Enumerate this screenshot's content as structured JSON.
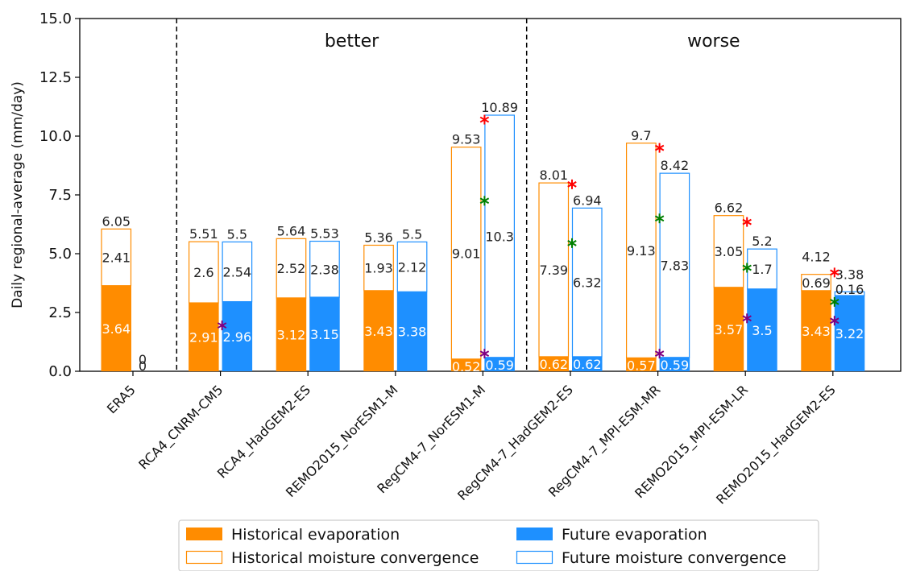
{
  "chart_data": {
    "type": "bar",
    "ylabel": "Daily regional-average (mm/day)",
    "ylim": [
      0,
      15
    ],
    "yticks": [
      "0.0",
      "2.5",
      "5.0",
      "7.5",
      "10.0",
      "12.5",
      "15.0"
    ],
    "categories": [
      "ERA5",
      "RCA4_CNRM-CM5",
      "RCA4_HadGEM2-ES",
      "REMO2015_NorESM1-M",
      "RegCM4-7_NorESM1-M",
      "RegCM4-7_HadGEM2-ES",
      "RegCM4-7_MPI-ESM-MR",
      "REMO2015_MPI-ESM-LR",
      "REMO2015_HadGEM2-ES"
    ],
    "regions": [
      {
        "label": "better",
        "from_category": 1,
        "to_category": 4
      },
      {
        "label": "worse",
        "from_category": 5,
        "to_category": 8
      }
    ],
    "series": [
      {
        "name": "Historical evaporation",
        "color": "#ff8c00",
        "style": "filled",
        "values": [
          3.64,
          2.91,
          3.12,
          3.43,
          0.52,
          0.62,
          0.57,
          3.57,
          3.43
        ],
        "labels": [
          "3.64",
          "2.91",
          "3.12",
          "3.43",
          "0.52",
          "0.62",
          "0.57",
          "3.57",
          "3.43"
        ]
      },
      {
        "name": "Historical moisture convergence",
        "color": "#ff8c00",
        "style": "outline",
        "values": [
          2.41,
          2.6,
          2.52,
          1.93,
          9.01,
          7.39,
          9.13,
          3.05,
          0.69
        ],
        "labels": [
          "2.41",
          "2.6",
          "2.52",
          "1.93",
          "9.01",
          "7.39",
          "9.13",
          "3.05",
          "0.69"
        ]
      },
      {
        "name": "Future evaporation",
        "color": "#1e90ff",
        "style": "filled",
        "values": [
          0,
          2.96,
          3.15,
          3.38,
          0.59,
          0.62,
          0.59,
          3.5,
          3.22
        ],
        "labels": [
          "0",
          "2.96",
          "3.15",
          "3.38",
          "0.59",
          "0.62",
          "0.59",
          "3.5",
          "3.22"
        ]
      },
      {
        "name": "Future moisture convergence",
        "color": "#1e90ff",
        "style": "outline",
        "values": [
          0,
          2.54,
          2.38,
          2.12,
          10.3,
          6.32,
          7.83,
          1.7,
          0.16
        ],
        "labels": [
          "0",
          "2.54",
          "2.38",
          "2.12",
          "10.3",
          "6.32",
          "7.83",
          "1.7",
          "0.16"
        ]
      }
    ],
    "totals": {
      "historical": [
        "6.05",
        "5.51",
        "5.64",
        "5.36",
        "9.53",
        "8.01",
        "9.7",
        "6.62",
        "4.12"
      ],
      "future": [
        "",
        "5.5",
        "5.53",
        "5.5",
        "10.89",
        "6.94",
        "8.42",
        "5.2",
        "3.38"
      ]
    },
    "markers": [
      {
        "category": 1,
        "value": 1.95,
        "color": "#800080"
      },
      {
        "category": 4,
        "value": 10.7,
        "color": "#ff0000"
      },
      {
        "category": 4,
        "value": 7.25,
        "color": "#008000"
      },
      {
        "category": 4,
        "value": 0.75,
        "color": "#800080"
      },
      {
        "category": 5,
        "value": 7.95,
        "color": "#ff0000"
      },
      {
        "category": 5,
        "value": 5.45,
        "color": "#008000"
      },
      {
        "category": 6,
        "value": 9.5,
        "color": "#ff0000"
      },
      {
        "category": 6,
        "value": 6.5,
        "color": "#008000"
      },
      {
        "category": 6,
        "value": 0.75,
        "color": "#800080"
      },
      {
        "category": 7,
        "value": 6.35,
        "color": "#ff0000"
      },
      {
        "category": 7,
        "value": 4.4,
        "color": "#008000"
      },
      {
        "category": 7,
        "value": 2.25,
        "color": "#800080"
      },
      {
        "category": 8,
        "value": 4.2,
        "color": "#ff0000"
      },
      {
        "category": 8,
        "value": 2.95,
        "color": "#008000"
      },
      {
        "category": 8,
        "value": 2.15,
        "color": "#800080"
      }
    ],
    "legend": {
      "placement": "bottom",
      "columns": 2,
      "entries": [
        "Historical evaporation",
        "Future evaporation",
        "Historical moisture convergence",
        "Future moisture convergence"
      ]
    }
  }
}
